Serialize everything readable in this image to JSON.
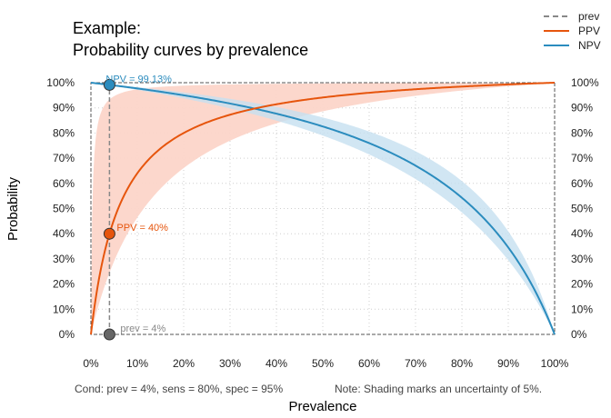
{
  "chart_data": {
    "type": "line",
    "title": "Example:",
    "subtitle": "Probability curves by prevalence",
    "xlabel": "Prevalence",
    "ylabel": "Probability",
    "xlim": [
      0,
      1
    ],
    "ylim": [
      0,
      1
    ],
    "x_ticks": [
      "0%",
      "10%",
      "20%",
      "30%",
      "40%",
      "50%",
      "60%",
      "70%",
      "80%",
      "90%",
      "100%"
    ],
    "y_ticks": [
      "0%",
      "10%",
      "20%",
      "30%",
      "40%",
      "50%",
      "60%",
      "70%",
      "80%",
      "90%",
      "100%"
    ],
    "grid": true,
    "legend_position": "top-right",
    "parameters": {
      "prev": 0.04,
      "sens": 0.8,
      "spec": 0.95,
      "uncertainty": 0.05
    },
    "series": [
      {
        "name": "prev",
        "type": "vline",
        "x": 0.04,
        "color": "#888888"
      },
      {
        "name": "PPV",
        "type": "curve",
        "color": "#e6550d",
        "band_color": "#fcd5c9"
      },
      {
        "name": "NPV",
        "type": "curve",
        "color": "#2b8cbe",
        "band_color": "#c6e0f0"
      }
    ],
    "annotations": [
      {
        "text": "NPV = 99.13%",
        "x": 0.04,
        "y": 0.9913,
        "color": "#2b8cbe"
      },
      {
        "text": "PPV = 40%",
        "x": 0.04,
        "y": 0.4,
        "color": "#e6550d"
      },
      {
        "text": "prev = 4%",
        "x": 0.04,
        "y": 0.0,
        "color": "#888888"
      }
    ],
    "caption_left": "Cond:  prev = 4%, sens = 80%, spec = 95%",
    "caption_right": "Note:  Shading marks an uncertainty of 5%."
  }
}
